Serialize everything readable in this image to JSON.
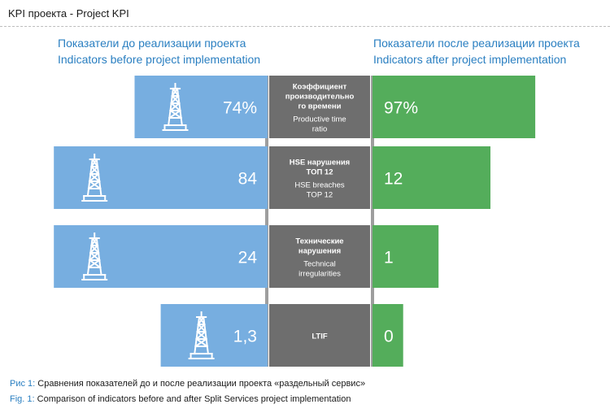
{
  "title": "KPI проекта - Project KPI",
  "headers": {
    "before_ru": "Показатели до реализации проекта",
    "before_en": "Indicators before project implementation",
    "after_ru": "Показатели после реализации проекта",
    "after_en": "Indicators after project implementation"
  },
  "colors": {
    "before": "#77aee0",
    "after": "#54ad5b",
    "label_bg": "#6e6e6e",
    "divider": "#9e9e9e",
    "accent": "#2a7fc1"
  },
  "chart_data": {
    "type": "bar",
    "layout": "butterfly",
    "categories": [
      {
        "ru": "Коэффициент производительного времени",
        "ru_lines": [
          "Коэффициент",
          "производительно",
          "го времени"
        ],
        "en_lines": [
          "Productive time",
          "ratio"
        ]
      },
      {
        "ru": "HSE нарушения ТОП 12",
        "ru_lines": [
          "HSE нарушения",
          "ТОП 12"
        ],
        "en_lines": [
          "HSE breaches",
          "TOP 12"
        ]
      },
      {
        "ru": "Технические нарушения",
        "ru_lines": [
          "Технические",
          "нарушения"
        ],
        "en_lines": [
          "Technical",
          "irregularities"
        ]
      },
      {
        "ru": "LTIF",
        "ru_lines": [
          "LTIF"
        ],
        "en_lines": []
      }
    ],
    "series": [
      {
        "name": "Indicators before project implementation",
        "values": [
          74,
          84,
          24,
          1.3
        ],
        "labels": [
          "74%",
          "84",
          "24",
          "1,3"
        ]
      },
      {
        "name": "Indicators after project implementation",
        "values": [
          97,
          12,
          1,
          0
        ],
        "labels": [
          "97%",
          "12",
          "1",
          "0"
        ]
      }
    ],
    "note": "Bar lengths are schematic (not to a common scale)",
    "bar_scale": {
      "before": [
        0.56,
        0.9,
        0.9,
        0.45
      ],
      "after": [
        0.69,
        0.5,
        0.28,
        0.13
      ]
    },
    "icon": "oil-derrick-icon"
  },
  "captions": {
    "ru_prefix": "Рис 1:",
    "ru_text": " Сравнения показателей до и после реализации проекта «раздельный сервис»",
    "en_prefix": "Fig. 1:",
    "en_text": " Comparison of indicators before and after Split Services project implementation"
  }
}
